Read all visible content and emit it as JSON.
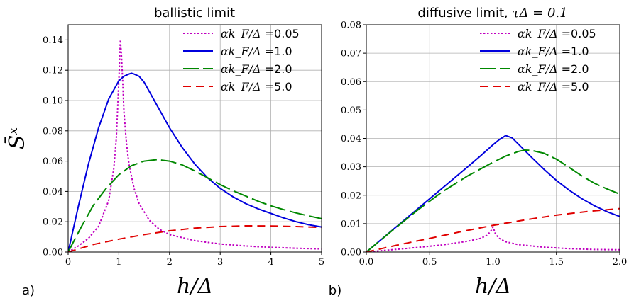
{
  "chart_data": [
    {
      "type": "line",
      "panel_label": "a)",
      "title": "ballistic limit",
      "title_math": "",
      "xlabel": "h/Δ",
      "ylabel": "S̄ˣ",
      "xlim": [
        0,
        5
      ],
      "ylim": [
        0,
        0.15
      ],
      "xticks": [
        0,
        1,
        2,
        3,
        4,
        5
      ],
      "xtick_labels": [
        "0",
        "1",
        "2",
        "3",
        "4",
        "5"
      ],
      "yticks": [
        0,
        0.02,
        0.04,
        0.06,
        0.08,
        0.1,
        0.12,
        0.14
      ],
      "ytick_labels": [
        "0.00",
        "0.02",
        "0.04",
        "0.06",
        "0.08",
        "0.10",
        "0.12",
        "0.14"
      ],
      "grid": true,
      "legend_position": "top-right",
      "series": [
        {
          "name": "αk_F/Δ =0.05",
          "color": "#c000c0",
          "dash": "dotted",
          "x": [
            0,
            0.2,
            0.4,
            0.6,
            0.8,
            0.9,
            0.95,
            1.0,
            1.03,
            1.05,
            1.08,
            1.1,
            1.15,
            1.2,
            1.3,
            1.4,
            1.6,
            1.8,
            2.0,
            2.5,
            3.0,
            3.5,
            4.0,
            4.5,
            5.0
          ],
          "y": [
            0,
            0.004,
            0.009,
            0.017,
            0.034,
            0.055,
            0.075,
            0.113,
            0.14,
            0.131,
            0.11,
            0.093,
            0.072,
            0.058,
            0.042,
            0.032,
            0.021,
            0.015,
            0.0115,
            0.0075,
            0.0053,
            0.004,
            0.0031,
            0.0025,
            0.002
          ]
        },
        {
          "name": "αk_F/Δ =1.0",
          "color": "#0000dd",
          "dash": "solid",
          "x": [
            0,
            0.2,
            0.4,
            0.6,
            0.8,
            1.0,
            1.1,
            1.2,
            1.25,
            1.3,
            1.4,
            1.5,
            1.6,
            1.8,
            2.0,
            2.25,
            2.5,
            2.75,
            3.0,
            3.25,
            3.5,
            3.75,
            4.0,
            4.25,
            4.5,
            4.75,
            5.0
          ],
          "y": [
            0,
            0.03,
            0.058,
            0.082,
            0.101,
            0.113,
            0.116,
            0.1175,
            0.118,
            0.1175,
            0.116,
            0.112,
            0.106,
            0.094,
            0.082,
            0.069,
            0.058,
            0.049,
            0.042,
            0.0365,
            0.032,
            0.0285,
            0.0255,
            0.0225,
            0.02,
            0.018,
            0.0165
          ]
        },
        {
          "name": "αk_F/Δ =2.0",
          "color": "#008800",
          "dash": "long-dash",
          "x": [
            0,
            0.25,
            0.5,
            0.75,
            1.0,
            1.25,
            1.5,
            1.75,
            2.0,
            2.25,
            2.5,
            2.75,
            3.0,
            3.25,
            3.5,
            3.75,
            4.0,
            4.25,
            4.5,
            4.75,
            5.0
          ],
          "y": [
            0,
            0.016,
            0.031,
            0.042,
            0.051,
            0.057,
            0.06,
            0.061,
            0.06,
            0.0575,
            0.0535,
            0.049,
            0.0445,
            0.0405,
            0.037,
            0.0335,
            0.0305,
            0.028,
            0.0258,
            0.0238,
            0.022
          ]
        },
        {
          "name": "αk_F/Δ =5.0",
          "color": "#e00000",
          "dash": "dashed",
          "x": [
            0,
            0.5,
            1.0,
            1.5,
            2.0,
            2.5,
            3.0,
            3.5,
            4.0,
            4.5,
            5.0
          ],
          "y": [
            0,
            0.005,
            0.0085,
            0.0115,
            0.014,
            0.0158,
            0.0168,
            0.0173,
            0.0172,
            0.0168,
            0.0162
          ]
        }
      ]
    },
    {
      "type": "line",
      "panel_label": "b)",
      "title": "diffusive limit, ",
      "title_math": "τΔ = 0.1",
      "xlabel": "h/Δ",
      "ylabel": "",
      "xlim": [
        0,
        2
      ],
      "ylim": [
        0,
        0.08
      ],
      "xticks": [
        0,
        0.5,
        1.0,
        1.5,
        2.0
      ],
      "xtick_labels": [
        "0.0",
        "0.5",
        "1.0",
        "1.5",
        "2.0"
      ],
      "yticks": [
        0,
        0.01,
        0.02,
        0.03,
        0.04,
        0.05,
        0.06,
        0.07,
        0.08
      ],
      "ytick_labels": [
        "0.00",
        "0.01",
        "0.02",
        "0.03",
        "0.04",
        "0.05",
        "0.06",
        "0.07",
        "0.08"
      ],
      "grid": true,
      "legend_position": "top-right",
      "series": [
        {
          "name": "αk_F/Δ =0.05",
          "color": "#c000c0",
          "dash": "dotted",
          "x": [
            0,
            0.2,
            0.4,
            0.6,
            0.8,
            0.9,
            0.95,
            0.98,
            1.0,
            1.02,
            1.05,
            1.1,
            1.2,
            1.4,
            1.6,
            1.8,
            2.0
          ],
          "y": [
            0,
            0.0008,
            0.0016,
            0.0025,
            0.0038,
            0.0048,
            0.0058,
            0.0072,
            0.0088,
            0.0062,
            0.0048,
            0.0036,
            0.0026,
            0.0017,
            0.0012,
            0.0009,
            0.0008
          ]
        },
        {
          "name": "αk_F/Δ =1.0",
          "color": "#0000dd",
          "dash": "solid",
          "x": [
            0,
            0.2,
            0.4,
            0.6,
            0.8,
            0.9,
            1.0,
            1.05,
            1.1,
            1.15,
            1.2,
            1.3,
            1.4,
            1.5,
            1.6,
            1.7,
            1.8,
            1.9,
            2.0
          ],
          "y": [
            0,
            0.0075,
            0.015,
            0.0225,
            0.03,
            0.0338,
            0.0378,
            0.0396,
            0.041,
            0.0402,
            0.038,
            0.0335,
            0.0292,
            0.0252,
            0.0218,
            0.0188,
            0.0163,
            0.0142,
            0.0125
          ]
        },
        {
          "name": "αk_F/Δ =2.0",
          "color": "#008800",
          "dash": "long-dash",
          "x": [
            0,
            0.2,
            0.4,
            0.6,
            0.8,
            1.0,
            1.1,
            1.2,
            1.25,
            1.3,
            1.4,
            1.5,
            1.6,
            1.7,
            1.8,
            1.9,
            2.0
          ],
          "y": [
            0,
            0.0074,
            0.0146,
            0.0212,
            0.0268,
            0.0316,
            0.0338,
            0.0354,
            0.0359,
            0.0358,
            0.0348,
            0.0327,
            0.0298,
            0.0268,
            0.0242,
            0.0222,
            0.0204
          ]
        },
        {
          "name": "αk_F/Δ =5.0",
          "color": "#e00000",
          "dash": "dashed",
          "x": [
            0,
            0.25,
            0.5,
            0.75,
            1.0,
            1.25,
            1.5,
            1.75,
            2.0
          ],
          "y": [
            0,
            0.0025,
            0.0048,
            0.0072,
            0.0094,
            0.0113,
            0.013,
            0.0143,
            0.0153
          ]
        }
      ]
    }
  ]
}
